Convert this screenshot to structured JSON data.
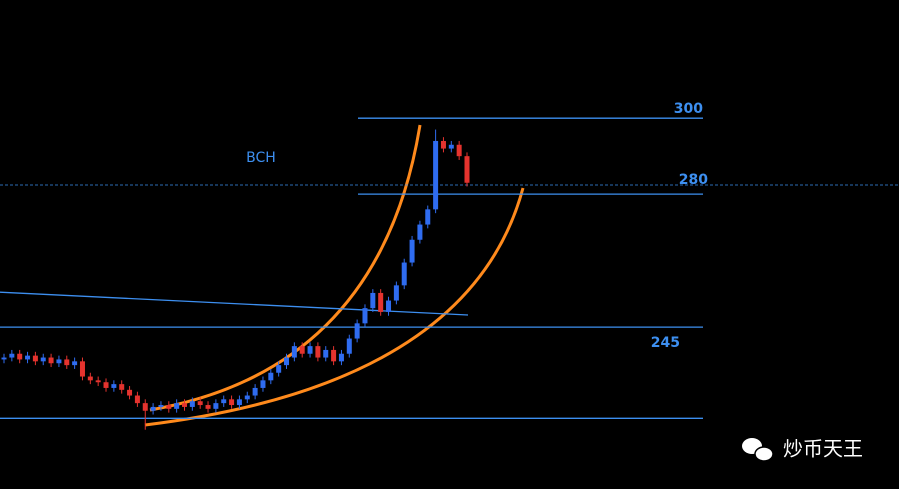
{
  "chart_data": {
    "type": "candlestick",
    "title": "BCH",
    "ylim": [
      202.4,
      331.1
    ],
    "levels": [
      300,
      280,
      245
    ],
    "support": 221,
    "current_price": 282.4,
    "trendline": [
      254.2,
      248.2
    ],
    "up_color": "#2f6cf0",
    "down_color": "#e5332e",
    "line_color": "#3d8ff0",
    "channel_color": "#ff8a1c",
    "open": [
      236.5,
      237,
      238,
      236.5,
      237.5,
      236,
      237,
      235.5,
      236.5,
      235,
      236,
      232,
      231,
      230.5,
      229,
      230,
      228.5,
      227,
      225,
      223,
      224,
      224.5,
      223.5,
      225,
      224,
      225.5,
      224.5,
      223.5,
      225,
      226,
      224.5,
      226,
      227,
      229,
      231,
      233,
      235,
      237,
      240,
      238,
      240,
      237,
      239,
      236,
      238,
      242,
      246,
      250,
      254,
      249,
      252,
      256,
      262,
      268,
      272,
      276,
      294,
      292,
      293,
      290
    ],
    "high": [
      238,
      239,
      239,
      238.5,
      238.5,
      238,
      238,
      237.5,
      237.5,
      237,
      237,
      233,
      232,
      231.5,
      231,
      231,
      229.5,
      228,
      226,
      225,
      225.5,
      225.5,
      226,
      226,
      226.5,
      226.5,
      225.5,
      226,
      227,
      227,
      227,
      228,
      230,
      232,
      234,
      236,
      238,
      241,
      241,
      241,
      241,
      240,
      240,
      239,
      243,
      247,
      251,
      255,
      255,
      253,
      257,
      263,
      269,
      273,
      277,
      297,
      295,
      294,
      294,
      291
    ],
    "low": [
      235.5,
      236,
      235.5,
      235.5,
      235,
      235,
      234.5,
      234.5,
      234,
      234,
      231,
      230,
      229.5,
      228,
      228,
      227.5,
      226,
      224,
      218,
      222,
      223,
      222.5,
      222.5,
      223,
      223,
      223.5,
      222.5,
      222.5,
      224,
      223.5,
      223.5,
      225,
      226,
      228,
      230,
      232,
      234,
      236,
      237,
      237,
      236,
      236,
      235,
      235,
      237,
      241,
      245,
      249,
      248,
      248,
      251,
      255,
      261,
      267,
      271,
      275,
      291,
      291,
      289,
      282
    ],
    "close": [
      237,
      238,
      236.5,
      237.5,
      236,
      237,
      235.5,
      236.5,
      235,
      236,
      232,
      231,
      230.5,
      229,
      230,
      228.5,
      227,
      225,
      223,
      224,
      224.5,
      223.5,
      225,
      224,
      225.5,
      224.5,
      223.5,
      225,
      226,
      224.5,
      226,
      227,
      229,
      231,
      233,
      235,
      237,
      240,
      238,
      240,
      237,
      239,
      236,
      238,
      242,
      246,
      250,
      254,
      249,
      252,
      256,
      262,
      268,
      272,
      276,
      294,
      292,
      293,
      290,
      283
    ]
  },
  "watermark": "炒币天王"
}
